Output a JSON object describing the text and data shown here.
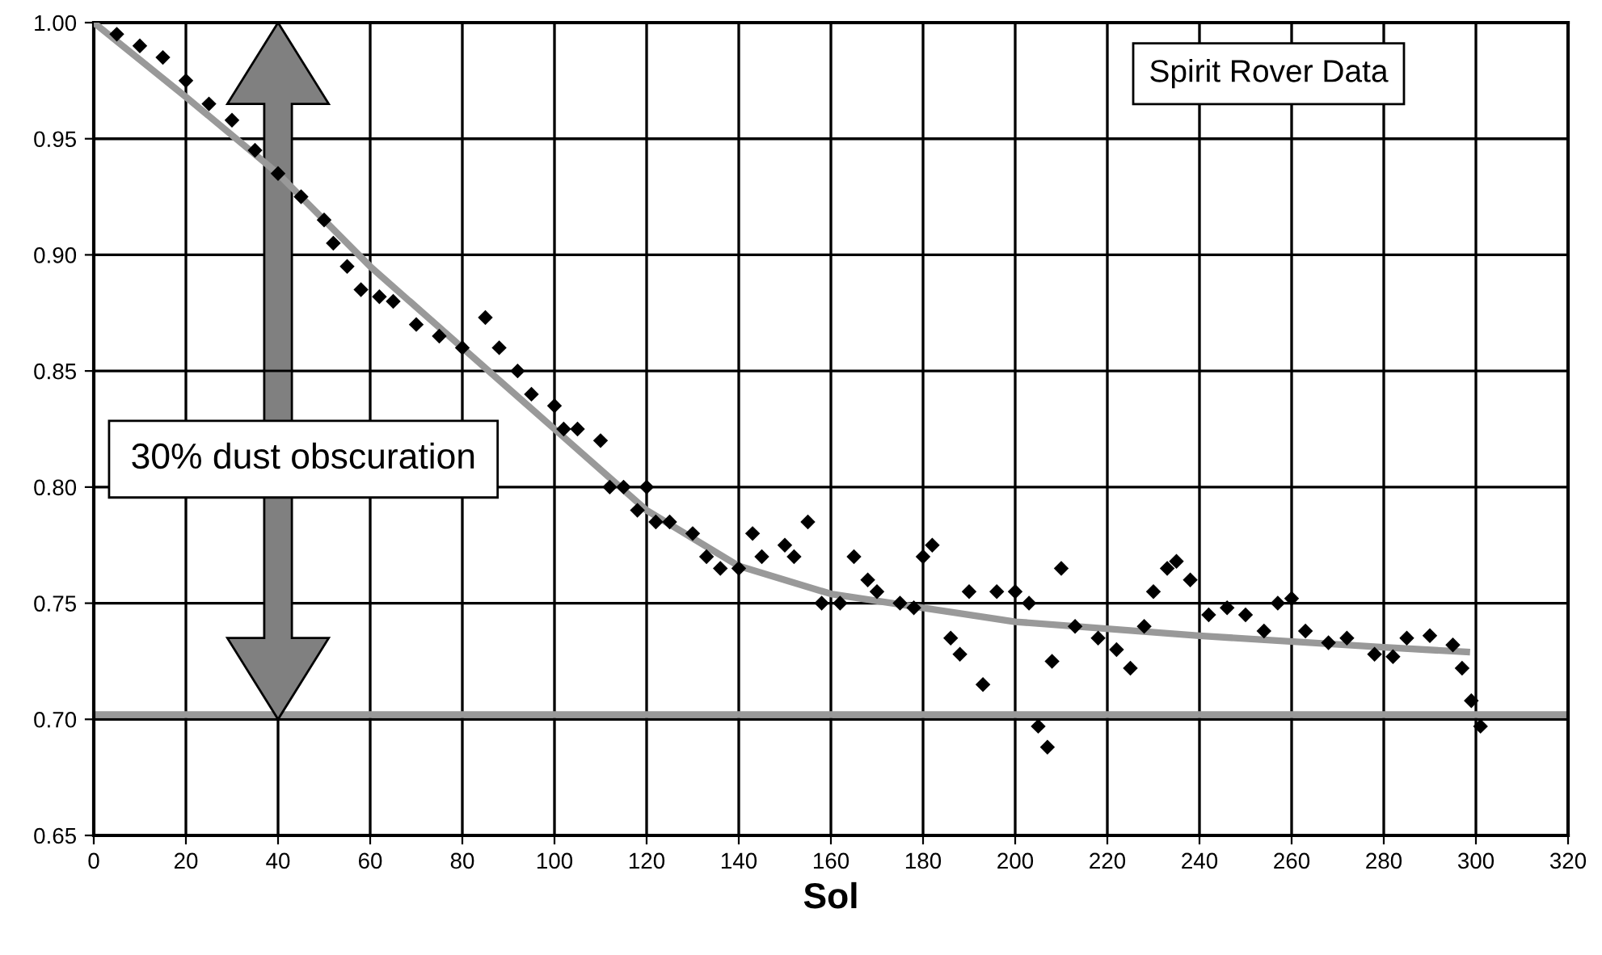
{
  "chart_data": {
    "type": "scatter",
    "xlabel": "Sol",
    "annotations": [
      "Spirit Rover Data",
      "30% dust obscuration"
    ],
    "series": [
      {
        "color": "#000000",
        "marker": "diamond",
        "x": [
          5,
          10,
          15,
          20,
          25,
          30,
          35,
          40,
          45,
          50,
          52,
          55,
          58,
          62,
          65,
          70,
          75,
          80,
          85,
          88,
          92,
          95,
          100,
          102,
          105,
          110,
          112,
          115,
          118,
          120,
          122,
          125,
          130,
          133,
          136,
          140,
          143,
          145,
          150,
          152,
          155,
          158,
          162,
          165,
          168,
          170,
          175,
          178,
          180,
          182,
          186,
          188,
          190,
          193,
          196,
          200,
          203,
          205,
          207,
          208,
          210,
          213,
          218,
          222,
          225,
          228,
          230,
          233,
          235,
          238,
          242,
          246,
          250,
          254,
          257,
          260,
          263,
          268,
          272,
          278,
          282,
          285,
          290,
          295,
          297,
          299,
          301
        ],
        "values": [
          0.995,
          0.99,
          0.985,
          0.975,
          0.965,
          0.958,
          0.945,
          0.935,
          0.925,
          0.915,
          0.905,
          0.895,
          0.885,
          0.882,
          0.88,
          0.87,
          0.865,
          0.86,
          0.873,
          0.86,
          0.85,
          0.84,
          0.835,
          0.825,
          0.825,
          0.82,
          0.8,
          0.8,
          0.79,
          0.8,
          0.785,
          0.785,
          0.78,
          0.77,
          0.765,
          0.765,
          0.78,
          0.77,
          0.775,
          0.77,
          0.785,
          0.75,
          0.75,
          0.77,
          0.76,
          0.755,
          0.75,
          0.748,
          0.77,
          0.775,
          0.735,
          0.728,
          0.755,
          0.715,
          0.755,
          0.755,
          0.75,
          0.697,
          0.688,
          0.725,
          0.765,
          0.74,
          0.735,
          0.73,
          0.722,
          0.74,
          0.755,
          0.765,
          0.768,
          0.76,
          0.745,
          0.748,
          0.745,
          0.738,
          0.75,
          0.752,
          0.738,
          0.733,
          0.735,
          0.728,
          0.727,
          0.735,
          0.736,
          0.732,
          0.722,
          0.708,
          0.697
        ]
      },
      {
        "type": "line",
        "color": "#999999",
        "marker": "none",
        "x": [
          0,
          20,
          40,
          60,
          80,
          100,
          120,
          140,
          160,
          180,
          200,
          240,
          280,
          298
        ],
        "values": [
          1.0,
          0.968,
          0.935,
          0.895,
          0.86,
          0.825,
          0.79,
          0.766,
          0.754,
          0.748,
          0.742,
          0.736,
          0.731,
          0.729
        ]
      }
    ],
    "ref_lines": [
      {
        "axis": "y",
        "value": 0.702,
        "color": "#999999"
      }
    ],
    "xlim": [
      0,
      320
    ],
    "xticks": [
      0,
      20,
      40,
      60,
      80,
      100,
      120,
      140,
      160,
      180,
      200,
      220,
      240,
      260,
      280,
      300,
      320
    ],
    "ylim": [
      0.65,
      1.0
    ],
    "yticks": [
      {
        "value": 0.65,
        "label": "0.65"
      },
      {
        "value": 0.7,
        "label": "0.70"
      },
      {
        "value": 0.75,
        "label": "0.75"
      },
      {
        "value": 0.8,
        "label": "0.80"
      },
      {
        "value": 0.85,
        "label": "0.85"
      },
      {
        "value": 0.9,
        "label": "0.90"
      },
      {
        "value": 0.95,
        "label": "0.95"
      },
      {
        "value": 1.0,
        "label": "1.00"
      }
    ],
    "grid": true,
    "legend": false
  }
}
